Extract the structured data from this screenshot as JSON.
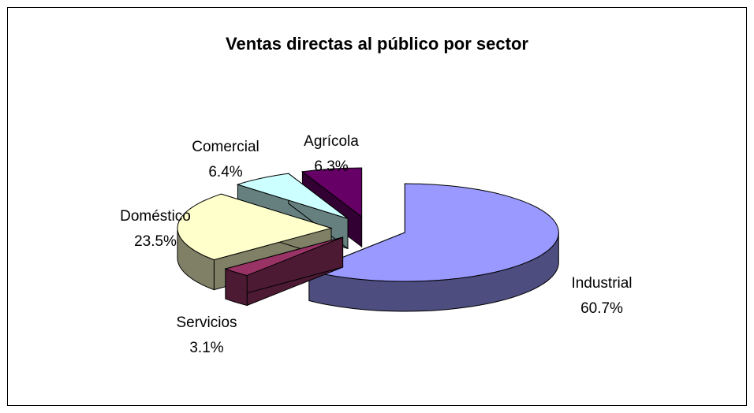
{
  "chart_data": {
    "type": "pie",
    "title": "Ventas directas al público por sector",
    "categories": [
      "Industrial",
      "Servicios",
      "Doméstico",
      "Comercial",
      "Agrícola"
    ],
    "values": [
      60.7,
      3.1,
      23.5,
      6.4,
      6.3
    ],
    "value_labels": [
      "60.7%",
      "3.1%",
      "23.5%",
      "6.4%",
      "6.3%"
    ],
    "colors": [
      "#9999ff",
      "#993366",
      "#ffffcc",
      "#ccffff",
      "#660066"
    ],
    "explode": true,
    "three_d": true
  }
}
